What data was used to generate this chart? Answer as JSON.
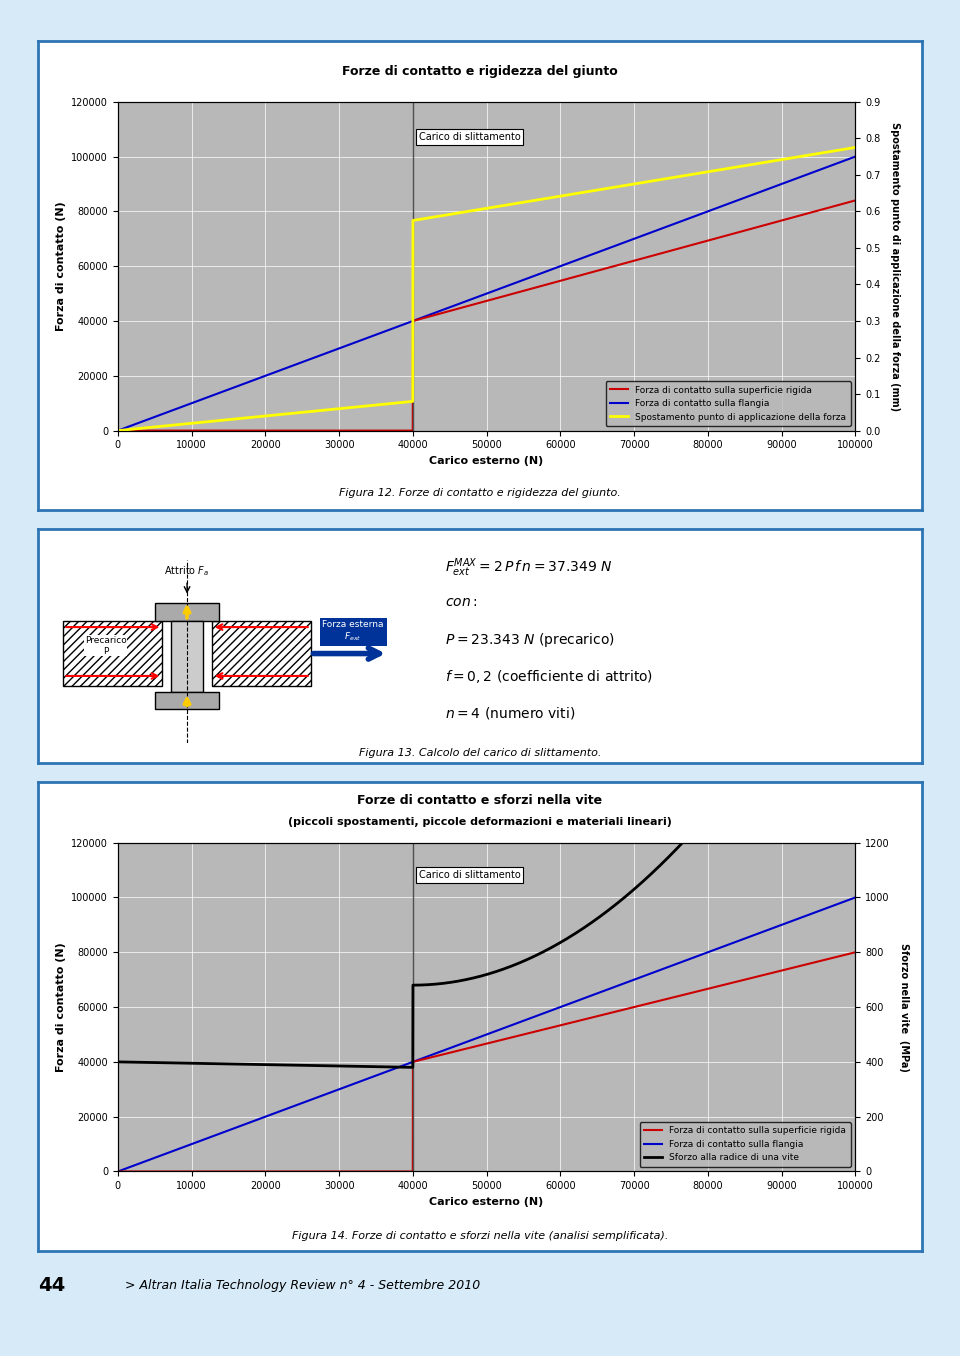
{
  "page_bg": "#d6eaf8",
  "panel_bg": "#ffffff",
  "chart_bg": "#b8b8b8",
  "chart1": {
    "title": "Forze di contatto e rigidezza del giunto",
    "xlabel": "Carico esterno (N)",
    "ylabel_left": "Forza di contatto (N)",
    "ylabel_right": "Spostamento punto di applicazione della forza (mm)",
    "xlim": [
      0,
      100000
    ],
    "ylim_left": [
      0,
      120000
    ],
    "ylim_right": [
      0,
      0.9
    ],
    "xticks": [
      0,
      10000,
      20000,
      30000,
      40000,
      50000,
      60000,
      70000,
      80000,
      90000,
      100000
    ],
    "yticks_left": [
      0,
      20000,
      40000,
      60000,
      80000,
      100000,
      120000
    ],
    "yticks_right": [
      0,
      0.1,
      0.2,
      0.3,
      0.4,
      0.5,
      0.6,
      0.7,
      0.8,
      0.9
    ],
    "slip_load_x": 40000,
    "legend": [
      {
        "label": "Forza di contatto sulla superficie rigida",
        "color": "#cc0000"
      },
      {
        "label": "Forza di contatto sulla flangia",
        "color": "#0000cc"
      },
      {
        "label": "Spostamento punto di applicazione della forza",
        "color": "#ffff00"
      }
    ],
    "caption": "Figura 12. Forze di contatto e rigidezza del giunto."
  },
  "chart2": {
    "title1": "Forze di contatto e sforzi nella vite",
    "title2": "(piccoli spostamenti, piccole deformazioni e materiali lineari)",
    "xlabel": "Carico esterno (N)",
    "ylabel_left": "Forza di contatto (N)",
    "ylabel_right": "Sforzo nella vite  (MPa)",
    "xlim": [
      0,
      100000
    ],
    "ylim_left": [
      0,
      120000
    ],
    "ylim_right": [
      0,
      1200
    ],
    "xticks": [
      0,
      10000,
      20000,
      30000,
      40000,
      50000,
      60000,
      70000,
      80000,
      90000,
      100000
    ],
    "yticks_left": [
      0,
      20000,
      40000,
      60000,
      80000,
      100000,
      120000
    ],
    "yticks_right": [
      0,
      200,
      400,
      600,
      800,
      1000,
      1200
    ],
    "slip_load_x": 40000,
    "legend": [
      {
        "label": "Forza di contatto sulla superficie rigida",
        "color": "#cc0000"
      },
      {
        "label": "Forza di contatto sulla flangia",
        "color": "#0000cc"
      },
      {
        "label": "Sforzo alla radice di una vite",
        "color": "#000000"
      }
    ],
    "caption": "Figura 14. Forze di contatto e sforzi nella vite (analisi semplificata)."
  },
  "middle_panel": {
    "caption": "Figura 13. Calcolo del carico di slittamento."
  },
  "footer": "> Altran Italia Technology Review n° 4 - Settembre 2010",
  "page_number": "44"
}
